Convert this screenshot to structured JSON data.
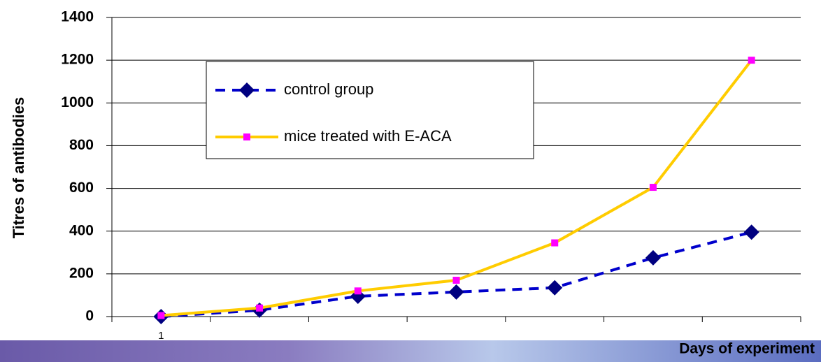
{
  "chart_data": {
    "type": "line",
    "y_label": "Titres of antibodies",
    "x_label": "Days of experiment",
    "categories": [
      "1",
      null,
      null,
      null,
      null,
      null,
      null
    ],
    "series": [
      {
        "name": "control group",
        "color": "#0000cc",
        "marker_color": "#000080",
        "marker": "diamond",
        "dash": true,
        "values": [
          0,
          30,
          95,
          115,
          135,
          275,
          395
        ]
      },
      {
        "name": "mice treated with E-ACA",
        "color": "#ffcc00",
        "marker_color": "#ff00ff",
        "marker": "square",
        "dash": false,
        "values": [
          5,
          40,
          120,
          170,
          345,
          605,
          1200
        ]
      }
    ],
    "ylim": [
      0,
      1400
    ],
    "yticks": [
      0,
      200,
      400,
      600,
      800,
      1000,
      1200,
      1400
    ],
    "grid": true
  }
}
